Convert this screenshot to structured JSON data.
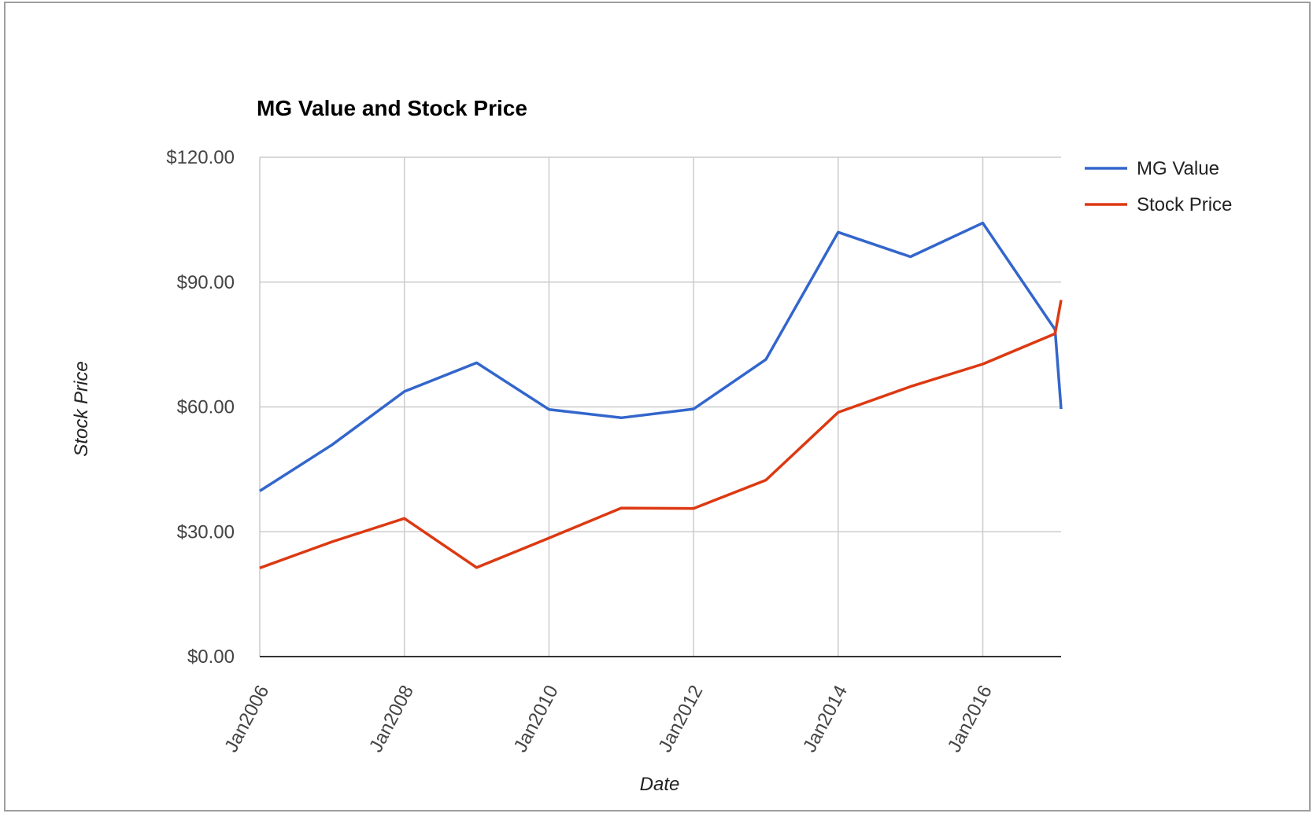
{
  "chart_data": {
    "type": "line",
    "title": "MG Value and Stock Price",
    "xlabel": "Date",
    "ylabel": "Stock Price",
    "x": [
      "2006-01",
      "2007-01",
      "2008-01",
      "2009-01",
      "2010-01",
      "2011-01",
      "2012-01",
      "2013-01",
      "2014-01",
      "2015-01",
      "2016-01",
      "2017-01",
      "2017-02"
    ],
    "x_ticks": [
      "Jan2006",
      "Jan2008",
      "Jan2010",
      "Jan2012",
      "Jan2014",
      "Jan2016"
    ],
    "y_ticks": [
      "$0.00",
      "$30.00",
      "$60.00",
      "$90.00",
      "$120.00"
    ],
    "ylim": [
      0,
      120
    ],
    "grid": true,
    "legend_position": "top-right",
    "series": [
      {
        "name": "MG Value",
        "color": "#3366cc",
        "values": [
          39.8,
          50.9,
          63.7,
          70.6,
          59.4,
          57.4,
          59.5,
          71.4,
          102.0,
          96.1,
          104.2,
          78.6,
          59.5
        ]
      },
      {
        "name": "Stock Price",
        "color": "#dc3912",
        "values": [
          21.3,
          27.6,
          33.2,
          21.4,
          28.5,
          35.7,
          35.6,
          42.4,
          58.7,
          64.9,
          70.3,
          77.6,
          85.7
        ]
      }
    ]
  }
}
